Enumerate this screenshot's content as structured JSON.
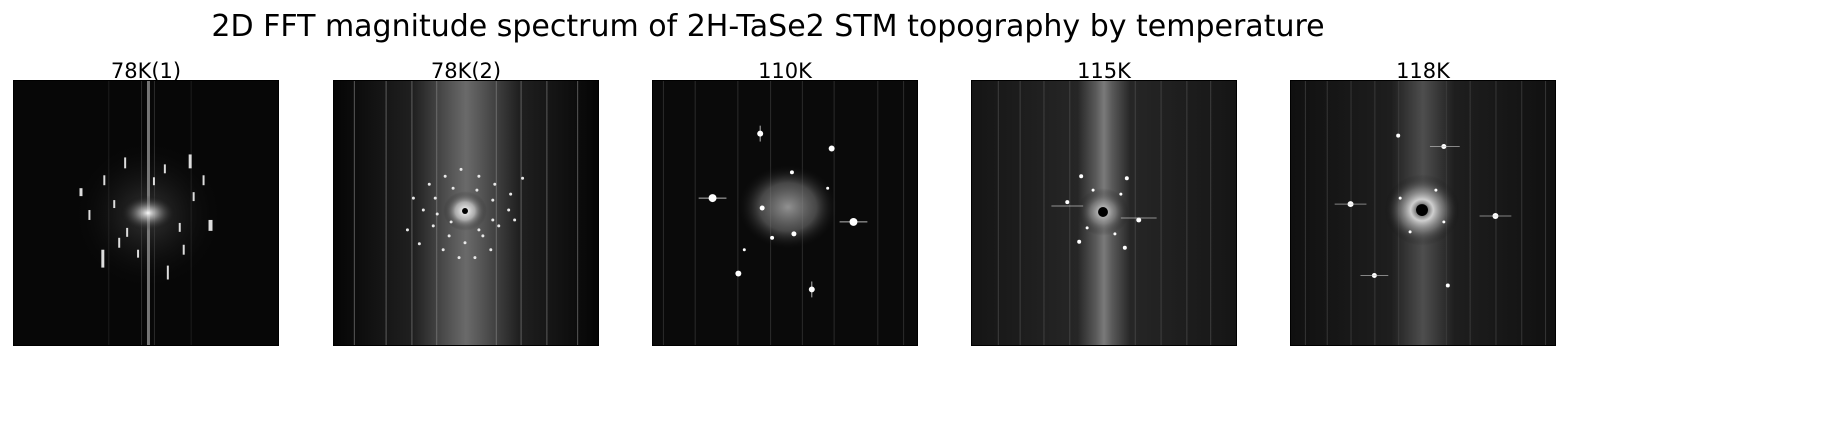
{
  "figure": {
    "title": "2D FFT magnitude spectrum of 2H-TaSe2 STM topography by temperature"
  },
  "panels": [
    {
      "label": "78K(1)"
    },
    {
      "label": "78K(2)"
    },
    {
      "label": "110K"
    },
    {
      "label": "115K"
    },
    {
      "label": "118K"
    }
  ],
  "colors": {
    "background": "#ffffff",
    "colormap": "gray"
  }
}
